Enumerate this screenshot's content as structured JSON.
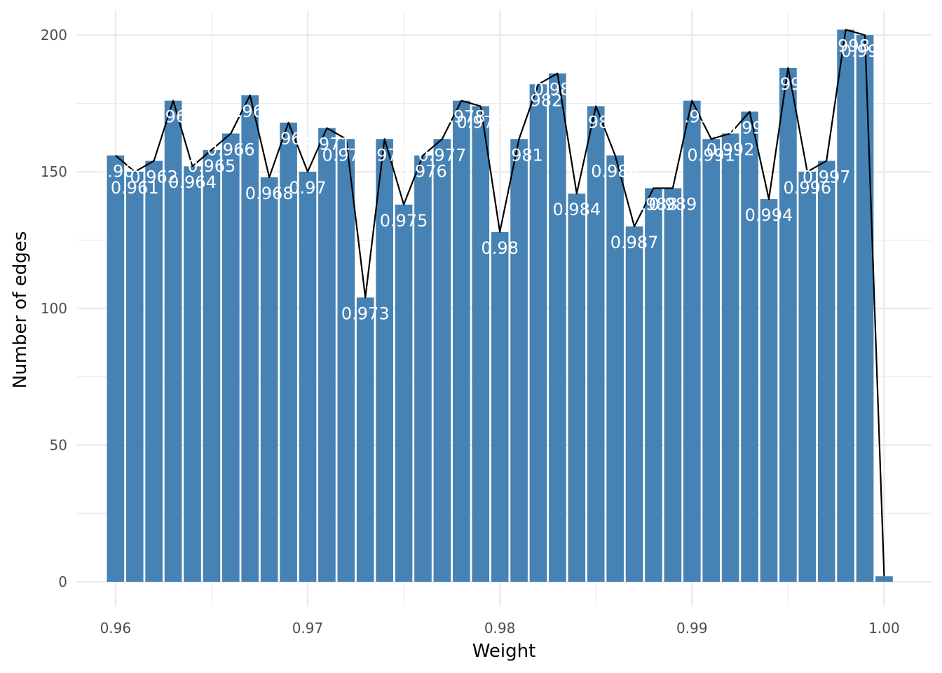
{
  "chart_data": {
    "type": "bar",
    "xlabel": "Weight",
    "ylabel": "Number of edges",
    "xlim": [
      0.958,
      1.0025
    ],
    "ylim": [
      -9,
      209
    ],
    "x_ticks": [
      "0.96",
      "0.97",
      "0.98",
      "0.99",
      "1.00"
    ],
    "x_tick_values": [
      0.96,
      0.97,
      0.98,
      0.99,
      1.0
    ],
    "y_ticks": [
      "0",
      "50",
      "100",
      "150",
      "200"
    ],
    "y_tick_values": [
      0,
      50,
      100,
      150,
      200
    ],
    "bar_width": 0.0009,
    "grid": true,
    "colors": {
      "bar": "#4682B4",
      "line": "#000000",
      "label": "#ffffff",
      "grid": "#ebebeb",
      "background": "#ffffff"
    },
    "series": [
      {
        "name": "",
        "x": [
          0.96,
          0.961,
          0.962,
          0.963,
          0.964,
          0.965,
          0.966,
          0.967,
          0.968,
          0.969,
          0.97,
          0.971,
          0.972,
          0.973,
          0.974,
          0.975,
          0.976,
          0.977,
          0.978,
          0.979,
          0.98,
          0.981,
          0.982,
          0.983,
          0.984,
          0.985,
          0.986,
          0.987,
          0.988,
          0.989,
          0.99,
          0.991,
          0.992,
          0.993,
          0.994,
          0.995,
          0.996,
          0.997,
          0.998,
          0.999,
          1.0
        ],
        "values": [
          156,
          150,
          154,
          176,
          152,
          158,
          164,
          178,
          148,
          168,
          150,
          166,
          162,
          104,
          162,
          138,
          156,
          162,
          176,
          174,
          128,
          162,
          182,
          186,
          142,
          174,
          156,
          130,
          144,
          144,
          176,
          162,
          164,
          172,
          140,
          188,
          150,
          154,
          202,
          200,
          2
        ],
        "labels": [
          "0.96",
          "0.961",
          "0.962",
          "0.963",
          "0.964",
          "0.965",
          "0.966",
          "0.967",
          "0.968",
          "0.969",
          "0.97",
          "0.971",
          "0.972",
          "0.973",
          "0.974",
          "0.975",
          "0.976",
          "0.977",
          "0.978",
          "0.979",
          "0.98",
          "0.981",
          "0.982",
          "0.983",
          "0.984",
          "0.985",
          "0.986",
          "0.987",
          "0.988",
          "0.989",
          "0.99",
          "0.991",
          "0.992",
          "0.993",
          "0.994",
          "0.995",
          "0.996",
          "0.997",
          "0.998",
          "0.999",
          ""
        ]
      }
    ]
  }
}
